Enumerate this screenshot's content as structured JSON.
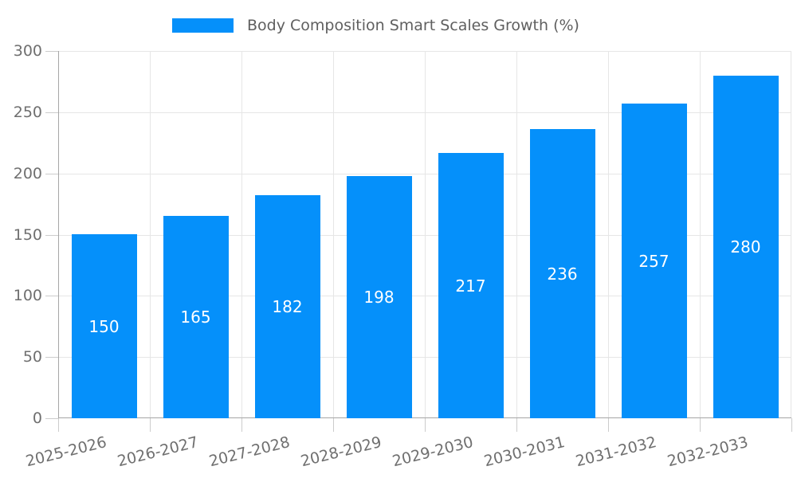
{
  "chart_data": {
    "type": "bar",
    "title": "Body Composition Smart Scales Growth (%)",
    "series_name": "Body Composition Smart Scales Growth (%)",
    "categories": [
      "2025-2026",
      "2026-2027",
      "2027-2028",
      "2028-2029",
      "2029-2030",
      "2030-2031",
      "2031-2032",
      "2032-2033"
    ],
    "values": [
      150,
      165,
      182,
      198,
      217,
      236,
      257,
      280
    ],
    "xlabel": "",
    "ylabel": "",
    "ylim": [
      0,
      300
    ],
    "yticks": [
      0,
      50,
      100,
      150,
      200,
      250,
      300
    ],
    "grid": true,
    "legend_position": "top-center",
    "value_labels": "inside-middle",
    "colors": {
      "bar": "#0590FA",
      "value_label": "#FFFFFF",
      "grid_line": "#E6E6E6",
      "axis_line": "#A6A6A6",
      "tick_mark": "#CCCCCC",
      "axis_text": "#6F6F6F",
      "legend_text": "#5F5F5F",
      "background": "#FFFFFF"
    }
  }
}
